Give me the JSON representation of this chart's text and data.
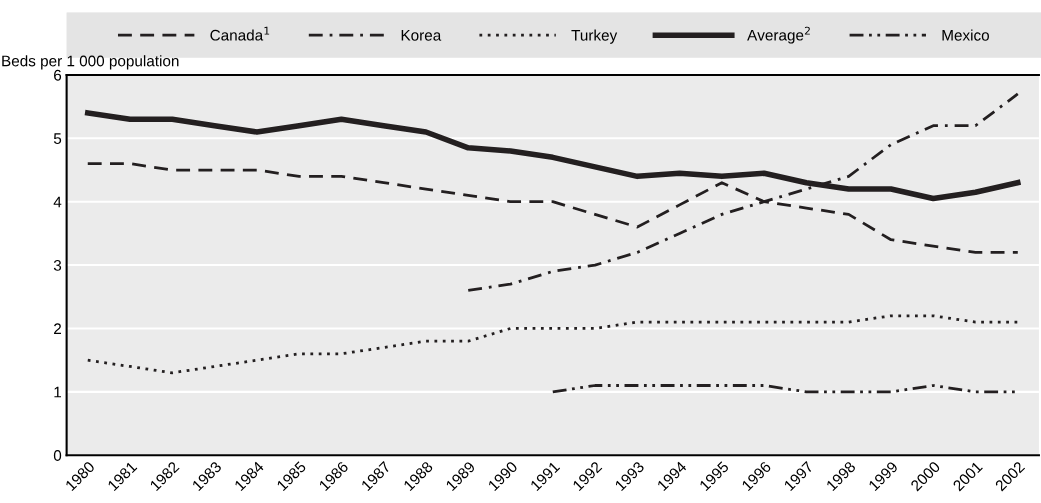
{
  "chart_data": {
    "type": "line",
    "ylabel": "Beds per 1 000 population",
    "categories": [
      "1980",
      "1981",
      "1982",
      "1983",
      "1984",
      "1985",
      "1986",
      "1987",
      "1988",
      "1989",
      "1990",
      "1991",
      "1992",
      "1993",
      "1994",
      "1995",
      "1996",
      "1997",
      "1998",
      "1999",
      "2000",
      "2001",
      "2002"
    ],
    "series": [
      {
        "name": "Canada$^{1}$",
        "color": "#231f20",
        "line_style": "dashed",
        "values": [
          4.6,
          4.6,
          4.5,
          4.5,
          4.5,
          4.4,
          4.4,
          4.3,
          4.2,
          4.1,
          4.0,
          4.0,
          3.8,
          3.6,
          3.95,
          4.3,
          4.0,
          3.9,
          3.8,
          3.4,
          3.3,
          3.2,
          3.2
        ]
      },
      {
        "name": "Korea",
        "color": "#231f20",
        "line_style": "dashdot",
        "values": [
          null,
          null,
          null,
          null,
          null,
          null,
          null,
          null,
          null,
          2.6,
          2.7,
          2.9,
          3.0,
          3.2,
          3.5,
          3.8,
          4.0,
          4.2,
          4.4,
          4.9,
          5.2,
          5.2,
          5.7
        ]
      },
      {
        "name": "Turkey",
        "color": "#231f20",
        "line_style": "dotted",
        "values": [
          1.5,
          1.4,
          1.3,
          1.4,
          1.5,
          1.6,
          1.6,
          1.7,
          1.8,
          1.8,
          2.0,
          2.0,
          2.0,
          2.1,
          2.1,
          2.1,
          2.1,
          2.1,
          2.1,
          2.2,
          2.2,
          2.1,
          2.1
        ]
      },
      {
        "name": "Average$^{2}$",
        "color": "#231f20",
        "line_style": "solid",
        "values": [
          5.4,
          5.3,
          5.3,
          5.2,
          5.1,
          5.2,
          5.3,
          5.2,
          5.1,
          4.85,
          4.8,
          4.7,
          4.55,
          4.4,
          4.45,
          4.4,
          4.45,
          4.3,
          4.2,
          4.2,
          4.05,
          4.15,
          4.3
        ]
      },
      {
        "name": "Mexico",
        "color": "#231f20",
        "line_style": "dashdotdot",
        "values": [
          null,
          null,
          null,
          null,
          null,
          null,
          null,
          null,
          null,
          null,
          null,
          1.0,
          1.1,
          1.1,
          1.1,
          1.1,
          1.1,
          1.0,
          1.0,
          1.0,
          1.1,
          1.0,
          1.0
        ]
      }
    ],
    "ylim": [
      0,
      6
    ],
    "yticks": [
      0,
      1,
      2,
      3,
      4,
      5,
      6
    ],
    "grid": "y",
    "legend": "top",
    "marker": "none"
  }
}
